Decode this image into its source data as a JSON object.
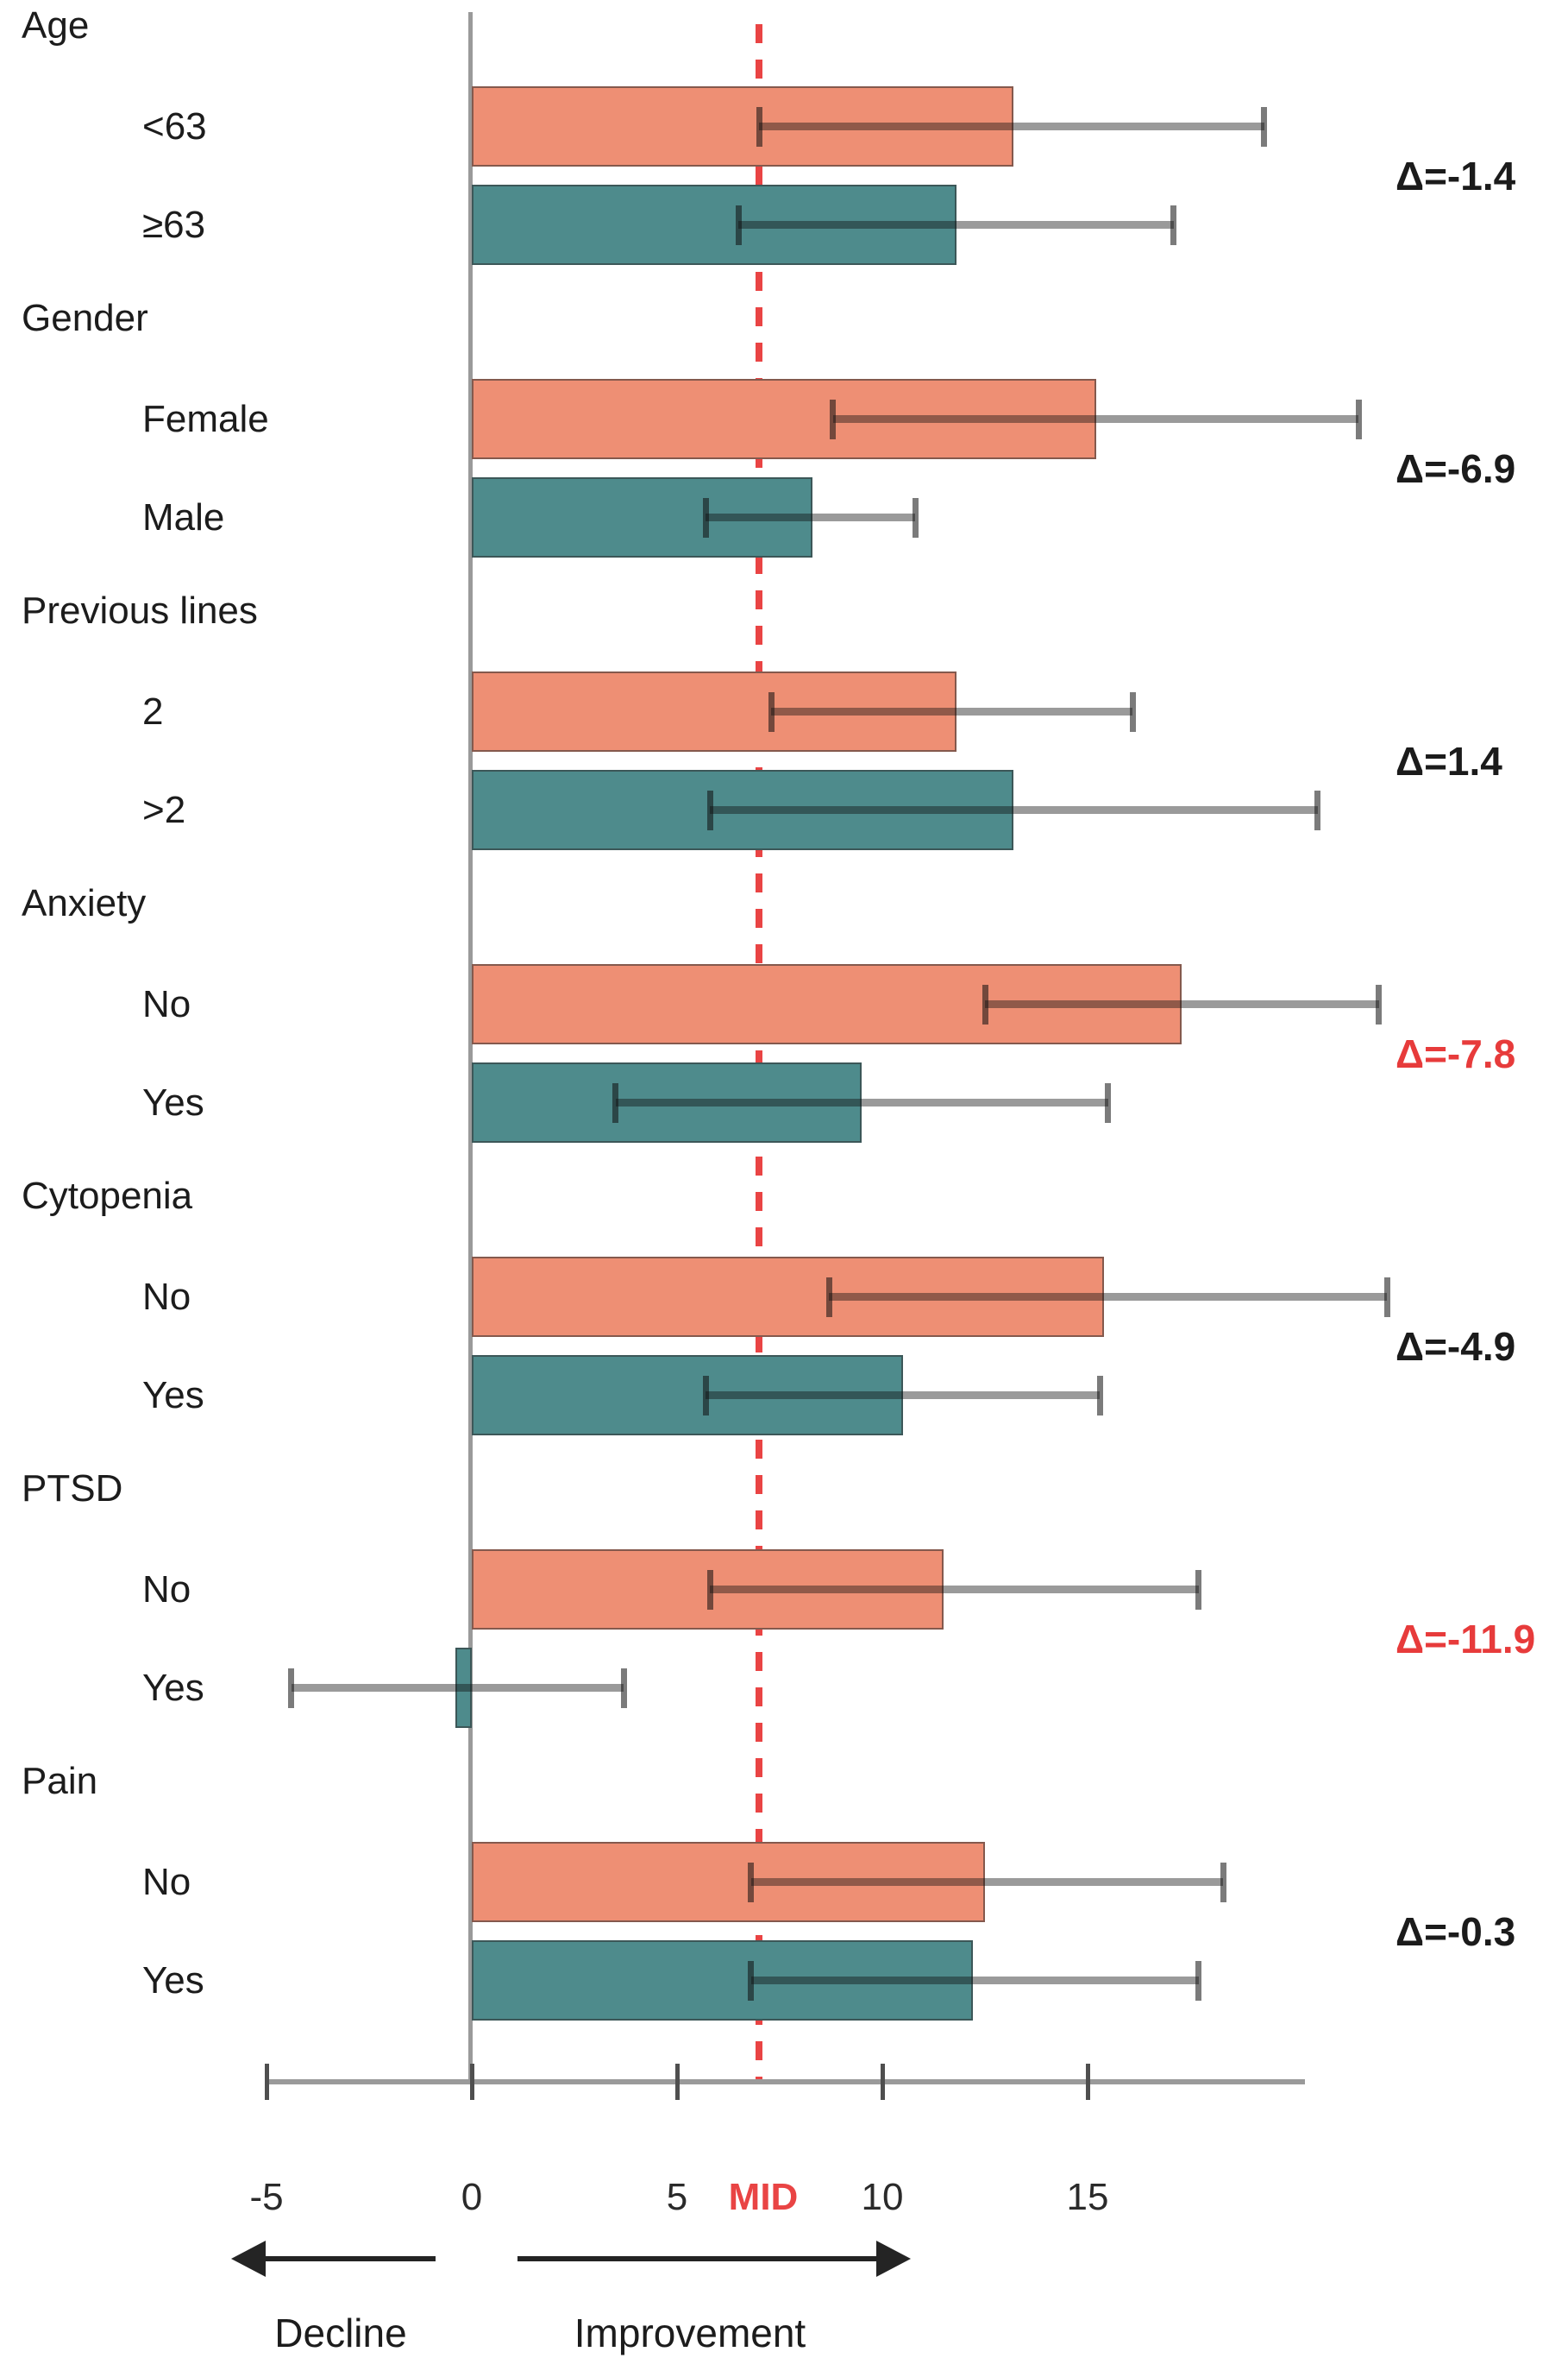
{
  "chart_data": {
    "type": "bar",
    "orientation": "horizontal",
    "title": "",
    "xlabel": "",
    "ylabel": "",
    "x_axis": {
      "min": -5,
      "max": 20.3,
      "ticks": [
        -5,
        0,
        5,
        10,
        15
      ],
      "tick_labels": [
        "-5",
        "0",
        "5",
        "10",
        "15"
      ]
    },
    "mid_line": {
      "value": 7.0,
      "label": "MID",
      "color": "#e94444"
    },
    "series_colors": {
      "first": "#ee8f74",
      "second": "#4e8b8c"
    },
    "delta_color_normal": "#1b1b1b",
    "delta_color_highlight": "#e73b3b",
    "groups": [
      {
        "label": "Age",
        "bars": [
          {
            "label": "<63",
            "value": 13.2,
            "ci": [
              7.0,
              19.3
            ]
          },
          {
            "label": "≥63",
            "value": 11.8,
            "ci": [
              6.5,
              17.1
            ]
          }
        ],
        "delta": {
          "text": "Δ=-1.4",
          "highlight": false
        }
      },
      {
        "label": "Gender",
        "bars": [
          {
            "label": "Female",
            "value": 15.2,
            "ci": [
              8.8,
              21.6
            ]
          },
          {
            "label": "Male",
            "value": 8.3,
            "ci": [
              5.7,
              10.8
            ]
          }
        ],
        "delta": {
          "text": "Δ=-6.9",
          "highlight": false
        }
      },
      {
        "label": "Previous lines",
        "bars": [
          {
            "label": "2",
            "value": 11.8,
            "ci": [
              7.3,
              16.1
            ]
          },
          {
            "label": ">2",
            "value": 13.2,
            "ci": [
              5.8,
              20.6
            ]
          }
        ],
        "delta": {
          "text": "Δ=1.4",
          "highlight": false
        }
      },
      {
        "label": "Anxiety",
        "bars": [
          {
            "label": "No",
            "value": 17.3,
            "ci": [
              12.5,
              22.1
            ]
          },
          {
            "label": "Yes",
            "value": 9.5,
            "ci": [
              3.5,
              15.5
            ]
          }
        ],
        "delta": {
          "text": "Δ=-7.8",
          "highlight": true
        }
      },
      {
        "label": "Cytopenia",
        "bars": [
          {
            "label": "No",
            "value": 15.4,
            "ci": [
              8.7,
              22.3
            ]
          },
          {
            "label": "Yes",
            "value": 10.5,
            "ci": [
              5.7,
              15.3
            ]
          }
        ],
        "delta": {
          "text": "Δ=-4.9",
          "highlight": false
        }
      },
      {
        "label": "PTSD",
        "bars": [
          {
            "label": "No",
            "value": 11.5,
            "ci": [
              5.8,
              17.7
            ]
          },
          {
            "label": "Yes",
            "value": -0.4,
            "ci": [
              -4.4,
              3.7
            ]
          }
        ],
        "delta": {
          "text": "Δ=-11.9",
          "highlight": true
        }
      },
      {
        "label": "Pain",
        "bars": [
          {
            "label": "No",
            "value": 12.5,
            "ci": [
              6.8,
              18.3
            ]
          },
          {
            "label": "Yes",
            "value": 12.2,
            "ci": [
              6.8,
              17.7
            ]
          }
        ],
        "delta": {
          "text": "Δ=-0.3",
          "highlight": false
        }
      }
    ],
    "annotations": {
      "decline": "Decline",
      "improvement": "Improvement"
    },
    "legend": "none",
    "grid": false
  }
}
